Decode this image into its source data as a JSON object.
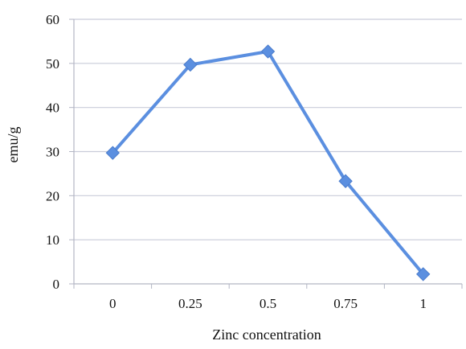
{
  "chart_data": {
    "type": "line",
    "title": "",
    "xlabel": "Zinc concentration",
    "ylabel": "emu/g",
    "categories": [
      "0",
      "0.25",
      "0.5",
      "0.75",
      "1"
    ],
    "series": [
      {
        "values": [
          29.7,
          49.7,
          52.7,
          23.3,
          2.2
        ]
      }
    ],
    "ylim": [
      0,
      60
    ],
    "yticks": [
      0,
      10,
      20,
      30,
      40,
      50,
      60
    ],
    "grid": true,
    "legend": "none",
    "marker": "diamond",
    "line_color": "#5b8fe0",
    "grid_color": "#c9ccd9",
    "axis_color": "#b3b6c4"
  }
}
